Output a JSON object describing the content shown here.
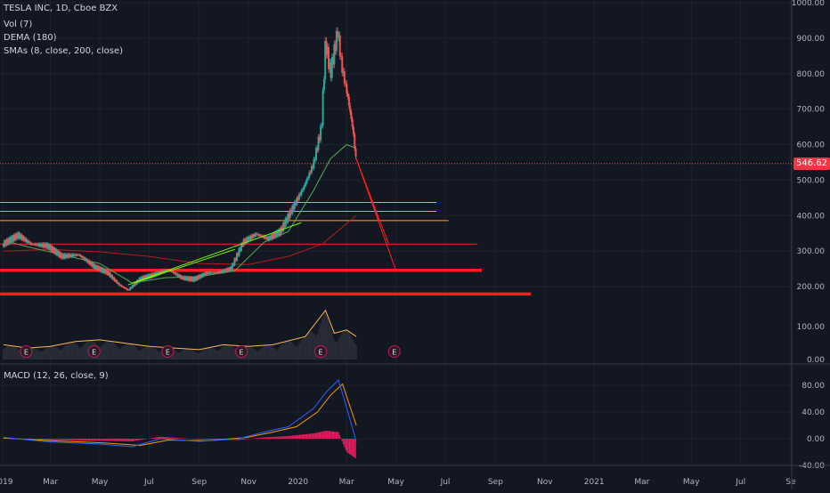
{
  "legend": {
    "title": "TESLA INC, 1D, Cboe BZX",
    "vol": "Vol (7)",
    "dema": "DEMA (180)",
    "smas": "SMAs (8, close, 200, close)",
    "macd": "MACD (12, 26, close, 9)"
  },
  "price_badge": "546.62",
  "colors": {
    "background": "#131722",
    "grid": "#1e222d",
    "axis_text": "#b2b5be",
    "candle_up": "#26a69a",
    "candle_down": "#ef5350",
    "sma_fast": "#4caf50",
    "sma_slow": "#b71c1c",
    "dema": "#ef5350",
    "volume_line": "#ffb74d",
    "trend_line": "#76ff03",
    "orange_levels": "#ffa726",
    "red_levels": "#ff1e1e",
    "macd_line": "#2962ff",
    "signal_line": "#ff9800",
    "histogram": "#e91e63"
  },
  "chart_data": {
    "type": "candlestick",
    "x_ticks": [
      "2019",
      "Mar",
      "May",
      "Jul",
      "Sep",
      "Nov",
      "2020",
      "Mar",
      "May",
      "Jul",
      "Sep",
      "Nov",
      "2021",
      "Mar",
      "May",
      "Jul",
      "Se"
    ],
    "price_pane": {
      "y_ticks": [
        "1000.00",
        "900.00",
        "800.00",
        "700.00",
        "600.00",
        "500.00",
        "400.00",
        "300.00",
        "200.00"
      ],
      "ylim": [
        160,
        1000
      ],
      "last_price": 546.62,
      "close_path": [
        [
          "2019-01-02",
          320
        ],
        [
          "2019-01-20",
          345
        ],
        [
          "2019-02-05",
          320
        ],
        [
          "2019-02-25",
          315
        ],
        [
          "2019-03-15",
          285
        ],
        [
          "2019-04-05",
          290
        ],
        [
          "2019-04-25",
          255
        ],
        [
          "2019-05-10",
          240
        ],
        [
          "2019-05-25",
          205
        ],
        [
          "2019-06-05",
          190
        ],
        [
          "2019-06-20",
          222
        ],
        [
          "2019-07-05",
          232
        ],
        [
          "2019-07-25",
          248
        ],
        [
          "2019-08-10",
          225
        ],
        [
          "2019-08-25",
          220
        ],
        [
          "2019-09-10",
          238
        ],
        [
          "2019-09-25",
          240
        ],
        [
          "2019-10-10",
          250
        ],
        [
          "2019-10-25",
          325
        ],
        [
          "2019-11-10",
          348
        ],
        [
          "2019-11-25",
          335
        ],
        [
          "2019-12-10",
          355
        ],
        [
          "2019-12-25",
          420
        ],
        [
          "2020-01-08",
          480
        ],
        [
          "2020-01-20",
          545
        ],
        [
          "2020-01-30",
          650
        ],
        [
          "2020-02-04",
          890
        ],
        [
          "2020-02-10",
          800
        ],
        [
          "2020-02-19",
          920
        ],
        [
          "2020-02-24",
          820
        ],
        [
          "2020-03-02",
          740
        ],
        [
          "2020-03-09",
          640
        ],
        [
          "2020-03-13",
          546
        ]
      ],
      "sma_fast": [
        [
          "2019-01-02",
          330
        ],
        [
          "2019-02-01",
          312
        ],
        [
          "2019-03-15",
          290
        ],
        [
          "2019-05-01",
          265
        ],
        [
          "2019-06-10",
          210
        ],
        [
          "2019-07-20",
          225
        ],
        [
          "2019-09-01",
          228
        ],
        [
          "2019-10-15",
          245
        ],
        [
          "2019-11-20",
          325
        ],
        [
          "2019-12-20",
          355
        ],
        [
          "2020-01-20",
          470
        ],
        [
          "2020-02-10",
          560
        ],
        [
          "2020-03-01",
          600
        ],
        [
          "2020-03-13",
          590
        ]
      ],
      "sma_slow": [
        [
          "2019-01-02",
          300
        ],
        [
          "2019-03-01",
          305
        ],
        [
          "2019-05-01",
          298
        ],
        [
          "2019-07-01",
          285
        ],
        [
          "2019-09-01",
          265
        ],
        [
          "2019-11-01",
          262
        ],
        [
          "2019-12-20",
          285
        ],
        [
          "2020-01-31",
          320
        ],
        [
          "2020-03-13",
          400
        ]
      ],
      "trend_lines": [
        {
          "from": [
            "2019-06-05",
            205
          ],
          "to": [
            "2019-10-15",
            305
          ]
        },
        {
          "from": [
            "2019-06-10",
            210
          ],
          "to": [
            "2020-01-05",
            380
          ]
        }
      ],
      "horizontal_levels": [
        {
          "price": 437,
          "to": "2020-06-20",
          "color": "orange"
        },
        {
          "price": 412,
          "to": "2020-06-20",
          "color": "orange"
        },
        {
          "price": 386,
          "to": "2020-07-05",
          "color": "orange"
        },
        {
          "price": 320,
          "to": "2020-08-10",
          "color": "red",
          "weight": "thin"
        },
        {
          "price": 246,
          "to": "2020-08-15",
          "color": "red",
          "weight": "thick"
        },
        {
          "price": 179,
          "to": "2020-10-15",
          "color": "red",
          "weight": "thick"
        }
      ],
      "projection_fan": {
        "from": [
          "2020-03-13",
          560
        ],
        "targets": [
          [
            "2020-04-10",
            385
          ],
          [
            "2020-04-22",
            320
          ],
          [
            "2020-05-01",
            245
          ]
        ]
      }
    },
    "volume_pane": {
      "y_ticks": [
        "100.00",
        "0.00"
      ],
      "ylim": [
        0,
        160
      ],
      "values": [
        [
          "2019-01-02",
          45
        ],
        [
          "2019-02-01",
          35
        ],
        [
          "2019-03-01",
          40
        ],
        [
          "2019-04-01",
          55
        ],
        [
          "2019-05-01",
          60
        ],
        [
          "2019-06-01",
          50
        ],
        [
          "2019-07-01",
          40
        ],
        [
          "2019-08-01",
          35
        ],
        [
          "2019-09-01",
          30
        ],
        [
          "2019-10-01",
          45
        ],
        [
          "2019-11-01",
          40
        ],
        [
          "2019-12-01",
          45
        ],
        [
          "2020-01-10",
          70
        ],
        [
          "2020-02-04",
          150
        ],
        [
          "2020-02-15",
          80
        ],
        [
          "2020-03-01",
          90
        ],
        [
          "2020-03-13",
          70
        ]
      ],
      "earnings_markers": [
        "2019-01-30",
        "2019-04-24",
        "2019-07-24",
        "2019-10-23",
        "2020-01-29",
        "2020-04-29"
      ],
      "earnings_label": "E"
    },
    "macd_pane": {
      "y_ticks": [
        "80.00",
        "40.00",
        "0.00",
        "-40.00"
      ],
      "ylim": [
        -45,
        100
      ],
      "macd": [
        [
          "2019-01-02",
          2
        ],
        [
          "2019-03-01",
          -5
        ],
        [
          "2019-05-01",
          -8
        ],
        [
          "2019-06-10",
          -12
        ],
        [
          "2019-07-15",
          0
        ],
        [
          "2019-09-01",
          -4
        ],
        [
          "2019-10-20",
          0
        ],
        [
          "2019-11-20",
          10
        ],
        [
          "2019-12-20",
          18
        ],
        [
          "2020-01-20",
          45
        ],
        [
          "2020-02-05",
          70
        ],
        [
          "2020-02-20",
          88
        ],
        [
          "2020-03-05",
          30
        ],
        [
          "2020-03-13",
          -5
        ]
      ],
      "signal": [
        [
          "2019-01-02",
          1
        ],
        [
          "2019-03-01",
          -3
        ],
        [
          "2019-05-01",
          -6
        ],
        [
          "2019-06-20",
          -10
        ],
        [
          "2019-07-25",
          -2
        ],
        [
          "2019-09-10",
          -3
        ],
        [
          "2019-10-30",
          2
        ],
        [
          "2019-12-01",
          10
        ],
        [
          "2019-12-30",
          18
        ],
        [
          "2020-01-25",
          40
        ],
        [
          "2020-02-10",
          65
        ],
        [
          "2020-02-25",
          82
        ],
        [
          "2020-03-13",
          20
        ]
      ],
      "histogram": [
        [
          "2019-01-02",
          1
        ],
        [
          "2019-03-01",
          -2
        ],
        [
          "2019-05-01",
          -3
        ],
        [
          "2019-06-10",
          -4
        ],
        [
          "2019-07-15",
          3
        ],
        [
          "2019-09-01",
          -1
        ],
        [
          "2019-10-20",
          -2
        ],
        [
          "2019-11-20",
          2
        ],
        [
          "2019-12-20",
          4
        ],
        [
          "2020-01-20",
          8
        ],
        [
          "2020-02-05",
          12
        ],
        [
          "2020-02-20",
          10
        ],
        [
          "2020-03-01",
          -20
        ],
        [
          "2020-03-13",
          -30
        ]
      ]
    }
  }
}
